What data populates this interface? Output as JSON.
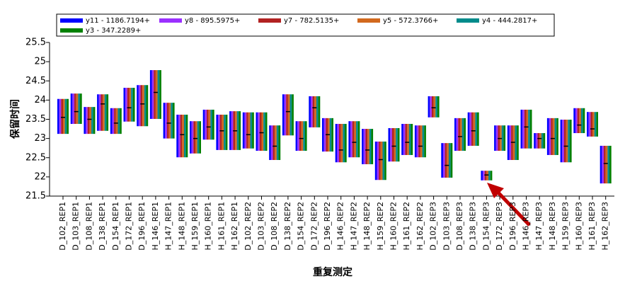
{
  "chart_data": {
    "type": "range-bar",
    "y_label": "保留时间",
    "x_label": "重复测定",
    "categories": [
      "D_102_REP1",
      "D_103_REP1",
      "D_108_REP1",
      "D_138_REP1",
      "D_154_REP1",
      "D_172_REP1",
      "D_196_REP1",
      "H_146_REP1",
      "H_147_REP1",
      "H_148_REP1",
      "H_159_REP1",
      "H_160_REP1",
      "H_161_REP1",
      "H_162_REP1",
      "D_102_REP2",
      "D_103_REP2",
      "D_108_REP2",
      "D_138_REP2",
      "D_154_REP2",
      "D_172_REP2",
      "D_196_REP2",
      "H_146_REP2",
      "H_147_REP2",
      "H_148_REP2",
      "H_159_REP2",
      "H_160_REP2",
      "H_161_REP2",
      "H_162_REP2",
      "D_102_REP3",
      "D_103_REP3",
      "D_108_REP3",
      "D_138_REP3",
      "D_154_REP3",
      "D_172_REP3",
      "D_196_REP3",
      "H_146_REP3",
      "H_147_REP3",
      "H_148_REP3",
      "H_159_REP3",
      "H_160_REP3",
      "H_161_REP3",
      "H_162_REP3"
    ],
    "highs": [
      24.03,
      24.17,
      23.82,
      24.15,
      23.79,
      24.32,
      24.39,
      24.78,
      23.93,
      23.62,
      23.45,
      23.75,
      23.62,
      23.71,
      23.68,
      23.68,
      23.34,
      24.15,
      23.45,
      24.1,
      23.53,
      23.38,
      23.45,
      23.25,
      22.92,
      23.27,
      23.38,
      23.34,
      24.1,
      22.88,
      23.53,
      23.68,
      22.16,
      23.34,
      23.34,
      23.75,
      23.14,
      23.53,
      23.49,
      23.79,
      23.69,
      22.81
    ],
    "lows": [
      23.12,
      23.38,
      23.12,
      23.2,
      23.12,
      23.44,
      23.32,
      23.51,
      23.0,
      22.51,
      22.61,
      22.97,
      22.7,
      22.7,
      22.74,
      22.68,
      22.44,
      23.08,
      22.68,
      23.29,
      22.66,
      22.38,
      22.51,
      22.33,
      21.92,
      22.4,
      22.57,
      22.51,
      23.55,
      21.98,
      22.68,
      22.81,
      21.91,
      22.68,
      22.44,
      22.74,
      22.74,
      22.57,
      22.38,
      23.14,
      23.05,
      21.83
    ],
    "medians": [
      23.55,
      23.7,
      23.5,
      23.9,
      23.4,
      23.8,
      23.9,
      24.2,
      23.4,
      23.1,
      23.0,
      23.3,
      23.2,
      23.2,
      23.1,
      23.15,
      22.8,
      23.7,
      23.0,
      23.8,
      23.1,
      22.7,
      22.9,
      22.7,
      22.45,
      22.8,
      22.9,
      22.8,
      23.8,
      22.3,
      23.05,
      23.2,
      22.05,
      23.0,
      22.9,
      23.3,
      23.0,
      23.0,
      22.8,
      23.35,
      23.25,
      22.35
    ],
    "series": [
      {
        "name": "y11 - 1186.7194+",
        "color": "#0000ff"
      },
      {
        "name": "y8 - 895.5975+",
        "color": "#9b30ff"
      },
      {
        "name": "y7 - 782.5135+",
        "color": "#b22222"
      },
      {
        "name": "y5 - 572.3766+",
        "color": "#d2691e"
      },
      {
        "name": "y4 - 444.2817+",
        "color": "#008b8b"
      },
      {
        "name": "y3 - 347.2289+",
        "color": "#008000"
      }
    ],
    "ylim": [
      21.5,
      25.5
    ],
    "yticks": [
      21.5,
      22,
      22.5,
      23,
      23.5,
      24,
      24.5,
      25,
      25.5
    ]
  }
}
